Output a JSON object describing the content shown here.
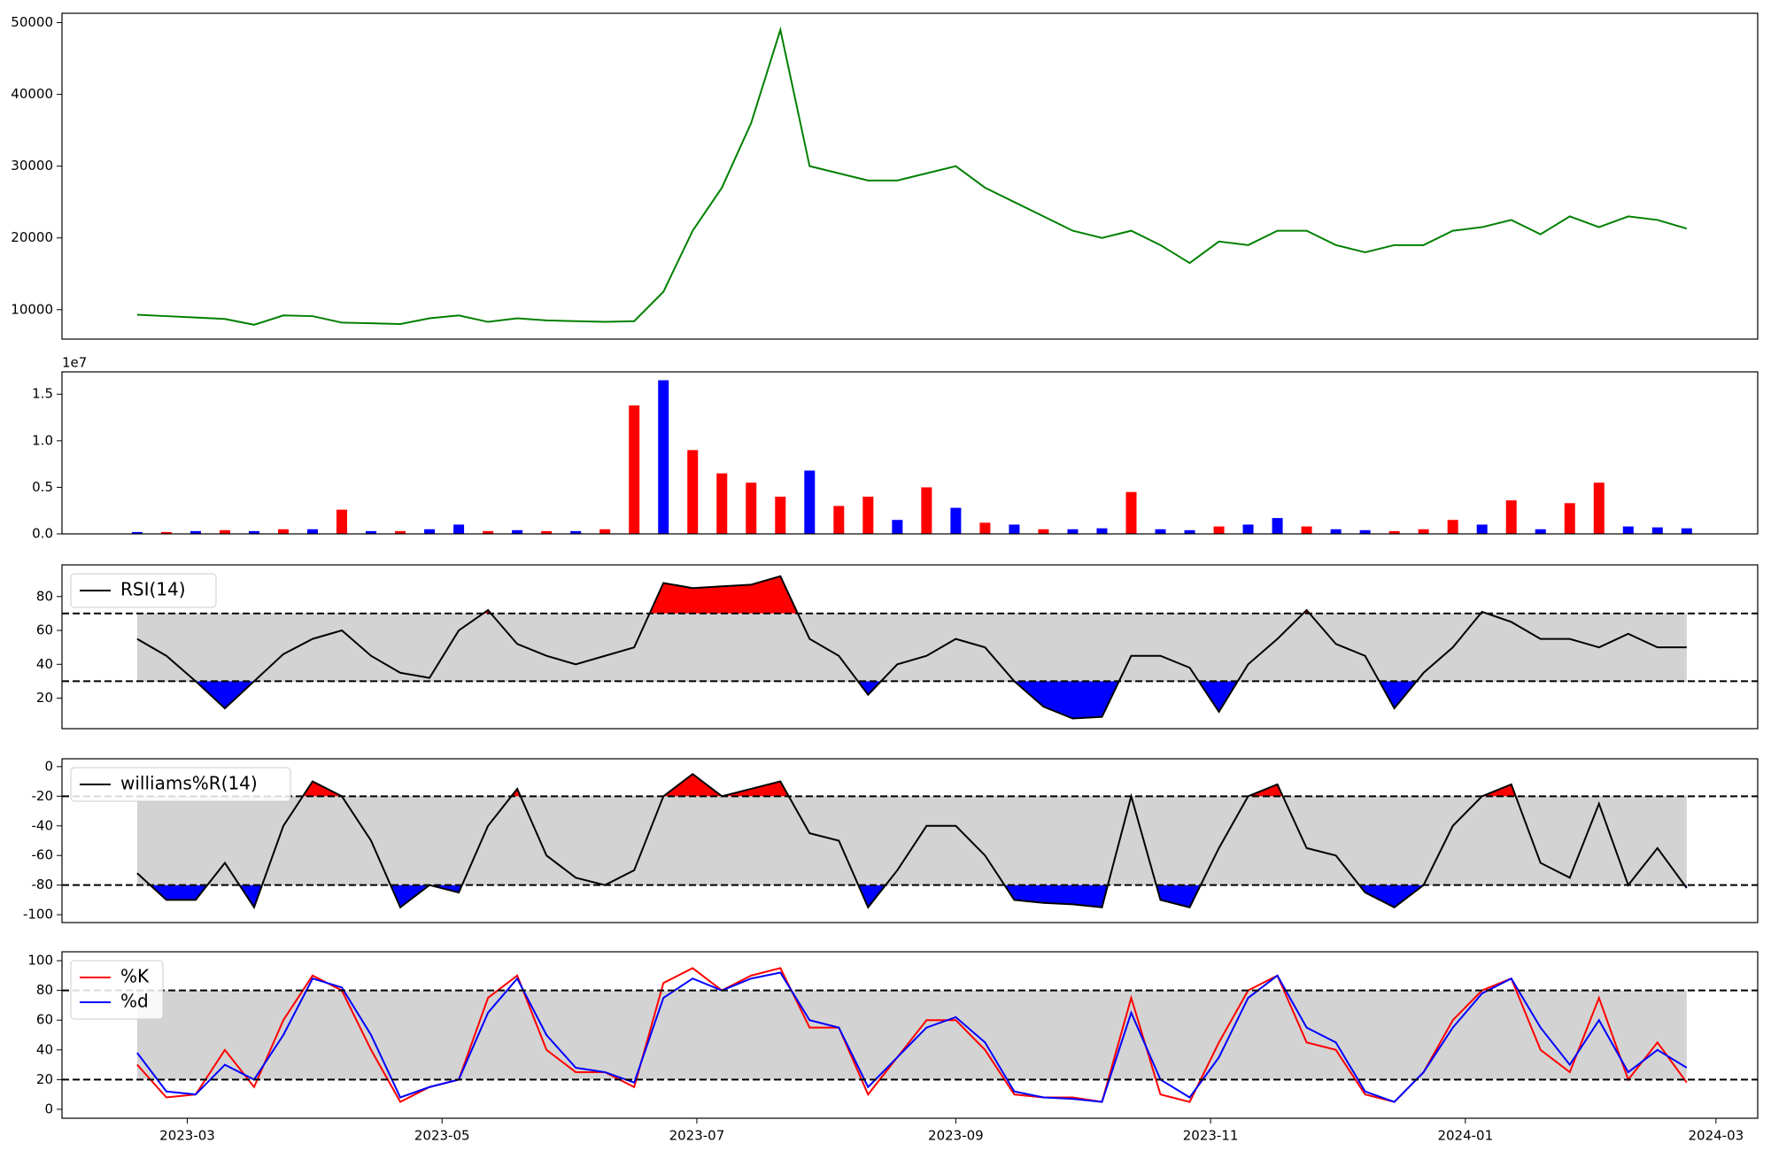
{
  "chart_data": [
    {
      "type": "line",
      "x": [
        "2023-02-17",
        "2023-02-24",
        "2023-03-03",
        "2023-03-10",
        "2023-03-17",
        "2023-03-24",
        "2023-03-31",
        "2023-04-07",
        "2023-04-14",
        "2023-04-21",
        "2023-04-28",
        "2023-05-05",
        "2023-05-12",
        "2023-05-19",
        "2023-05-26",
        "2023-06-02",
        "2023-06-09",
        "2023-06-16",
        "2023-06-23",
        "2023-06-30",
        "2023-07-07",
        "2023-07-14",
        "2023-07-21",
        "2023-07-28",
        "2023-08-04",
        "2023-08-11",
        "2023-08-18",
        "2023-08-25",
        "2023-09-01",
        "2023-09-08",
        "2023-09-15",
        "2023-09-22",
        "2023-09-29",
        "2023-10-06",
        "2023-10-13",
        "2023-10-20",
        "2023-10-27",
        "2023-11-03",
        "2023-11-10",
        "2023-11-17",
        "2023-11-24",
        "2023-12-01",
        "2023-12-08",
        "2023-12-15",
        "2023-12-22",
        "2023-12-29",
        "2024-01-05",
        "2024-01-12",
        "2024-01-19",
        "2024-01-26",
        "2024-02-02",
        "2024-02-09",
        "2024-02-16",
        "2024-02-23"
      ],
      "xlim": [
        "2023-01-30",
        "2024-03-11"
      ],
      "series": [
        {
          "color": "green",
          "values": [
            9300,
            9100,
            8900,
            8700,
            7900,
            9200,
            9100,
            8200,
            8100,
            8000,
            8800,
            9200,
            8300,
            8800,
            8500,
            8400,
            8300,
            8400,
            12500,
            21000,
            27000,
            36000,
            49000,
            30000,
            29000,
            28000,
            28000,
            29000,
            30000,
            27000,
            25000,
            23000,
            21000,
            20000,
            21000,
            19000,
            16500,
            19500,
            19000,
            21000,
            21000,
            19000,
            18000,
            19000,
            19000,
            21000,
            21500,
            22500,
            20500,
            23000,
            21500,
            23000,
            22500,
            21300
          ]
        }
      ],
      "ylim": [
        5900,
        51300
      ],
      "yticks": [
        10000,
        20000,
        30000,
        40000,
        50000
      ]
    },
    {
      "type": "bar",
      "x": [
        "2023-02-17",
        "2023-02-24",
        "2023-03-03",
        "2023-03-10",
        "2023-03-17",
        "2023-03-24",
        "2023-03-31",
        "2023-04-07",
        "2023-04-14",
        "2023-04-21",
        "2023-04-28",
        "2023-05-05",
        "2023-05-12",
        "2023-05-19",
        "2023-05-26",
        "2023-06-02",
        "2023-06-09",
        "2023-06-16",
        "2023-06-23",
        "2023-06-30",
        "2023-07-07",
        "2023-07-14",
        "2023-07-21",
        "2023-07-28",
        "2023-08-04",
        "2023-08-11",
        "2023-08-18",
        "2023-08-25",
        "2023-09-01",
        "2023-09-08",
        "2023-09-15",
        "2023-09-22",
        "2023-09-29",
        "2023-10-06",
        "2023-10-13",
        "2023-10-20",
        "2023-10-27",
        "2023-11-03",
        "2023-11-10",
        "2023-11-17",
        "2023-11-24",
        "2023-12-01",
        "2023-12-08",
        "2023-12-15",
        "2023-12-22",
        "2023-12-29",
        "2024-01-05",
        "2024-01-12",
        "2024-01-19",
        "2024-01-26",
        "2024-02-02",
        "2024-02-09",
        "2024-02-16",
        "2024-02-23"
      ],
      "xlim": [
        "2023-01-30",
        "2024-03-11"
      ],
      "offset_label": "1e7",
      "values": [
        0.02,
        0.02,
        0.03,
        0.04,
        0.03,
        0.05,
        0.05,
        0.26,
        0.03,
        0.03,
        0.05,
        0.1,
        0.03,
        0.04,
        0.03,
        0.03,
        0.05,
        1.38,
        1.65,
        0.9,
        0.65,
        0.55,
        0.4,
        0.68,
        0.3,
        0.4,
        0.15,
        0.5,
        0.28,
        0.12,
        0.1,
        0.05,
        0.05,
        0.06,
        0.45,
        0.05,
        0.04,
        0.08,
        0.1,
        0.17,
        0.08,
        0.05,
        0.04,
        0.03,
        0.05,
        0.15,
        0.1,
        0.36,
        0.05,
        0.33,
        0.55,
        0.08,
        0.07,
        0.06
      ],
      "bar_colors": [
        "blue",
        "red",
        "blue",
        "red",
        "blue",
        "red",
        "blue",
        "red",
        "blue",
        "red",
        "blue",
        "blue",
        "red",
        "blue",
        "red",
        "blue",
        "red",
        "red",
        "blue",
        "red",
        "red",
        "red",
        "red",
        "blue",
        "red",
        "red",
        "blue",
        "red",
        "blue",
        "red",
        "blue",
        "red",
        "blue",
        "blue",
        "red",
        "blue",
        "blue",
        "red",
        "blue",
        "blue",
        "red",
        "blue",
        "blue",
        "red",
        "red",
        "red",
        "blue",
        "red",
        "blue",
        "red",
        "red",
        "blue",
        "blue",
        "blue"
      ],
      "ylim": [
        0,
        1.74
      ],
      "yticks": [
        {
          "value": 0,
          "label": "0.0"
        },
        0.5,
        {
          "value": 1,
          "label": "1.0"
        },
        1.5
      ]
    },
    {
      "type": "line",
      "x": [
        "2023-02-17",
        "2023-02-24",
        "2023-03-03",
        "2023-03-10",
        "2023-03-17",
        "2023-03-24",
        "2023-03-31",
        "2023-04-07",
        "2023-04-14",
        "2023-04-21",
        "2023-04-28",
        "2023-05-05",
        "2023-05-12",
        "2023-05-19",
        "2023-05-26",
        "2023-06-02",
        "2023-06-09",
        "2023-06-16",
        "2023-06-23",
        "2023-06-30",
        "2023-07-07",
        "2023-07-14",
        "2023-07-21",
        "2023-07-28",
        "2023-08-04",
        "2023-08-11",
        "2023-08-18",
        "2023-08-25",
        "2023-09-01",
        "2023-09-08",
        "2023-09-15",
        "2023-09-22",
        "2023-09-29",
        "2023-10-06",
        "2023-10-13",
        "2023-10-20",
        "2023-10-27",
        "2023-11-03",
        "2023-11-10",
        "2023-11-17",
        "2023-11-24",
        "2023-12-01",
        "2023-12-08",
        "2023-12-15",
        "2023-12-22",
        "2023-12-29",
        "2024-01-05",
        "2024-01-12",
        "2024-01-19",
        "2024-01-26",
        "2024-02-02",
        "2024-02-09",
        "2024-02-16",
        "2024-02-23"
      ],
      "xlim": [
        "2023-01-30",
        "2024-03-11"
      ],
      "series": [
        {
          "name": "RSI(14)",
          "color": "black",
          "values": [
            55,
            45,
            30,
            14,
            30,
            46,
            55,
            60,
            45,
            35,
            32,
            60,
            72,
            52,
            45,
            40,
            45,
            50,
            88,
            85,
            86,
            87,
            92,
            55,
            45,
            22,
            40,
            45,
            55,
            50,
            30,
            15,
            8,
            9,
            45,
            45,
            38,
            12,
            40,
            55,
            72,
            52,
            45,
            14,
            35,
            50,
            71,
            65,
            55,
            55,
            50,
            58,
            50,
            50
          ]
        }
      ],
      "band": [
        30,
        70
      ],
      "band_color": "#d3d3d3",
      "fill_above": "red",
      "fill_below": "blue",
      "legend": "upper left",
      "ylim": [
        2,
        98.7
      ],
      "yticks": [
        20,
        40,
        60,
        80
      ]
    },
    {
      "type": "line",
      "x": [
        "2023-02-17",
        "2023-02-24",
        "2023-03-03",
        "2023-03-10",
        "2023-03-17",
        "2023-03-24",
        "2023-03-31",
        "2023-04-07",
        "2023-04-14",
        "2023-04-21",
        "2023-04-28",
        "2023-05-05",
        "2023-05-12",
        "2023-05-19",
        "2023-05-26",
        "2023-06-02",
        "2023-06-09",
        "2023-06-16",
        "2023-06-23",
        "2023-06-30",
        "2023-07-07",
        "2023-07-14",
        "2023-07-21",
        "2023-07-28",
        "2023-08-04",
        "2023-08-11",
        "2023-08-18",
        "2023-08-25",
        "2023-09-01",
        "2023-09-08",
        "2023-09-15",
        "2023-09-22",
        "2023-09-29",
        "2023-10-06",
        "2023-10-13",
        "2023-10-20",
        "2023-10-27",
        "2023-11-03",
        "2023-11-10",
        "2023-11-17",
        "2023-11-24",
        "2023-12-01",
        "2023-12-08",
        "2023-12-15",
        "2023-12-22",
        "2023-12-29",
        "2024-01-05",
        "2024-01-12",
        "2024-01-19",
        "2024-01-26",
        "2024-02-02",
        "2024-02-09",
        "2024-02-16",
        "2024-02-23"
      ],
      "xlim": [
        "2023-01-30",
        "2024-03-11"
      ],
      "series": [
        {
          "name": "williams%R(14)",
          "color": "black",
          "values": [
            -72,
            -90,
            -90,
            -65,
            -95,
            -40,
            -10,
            -20,
            -50,
            -95,
            -80,
            -85,
            -40,
            -15,
            -60,
            -75,
            -80,
            -70,
            -20,
            -5,
            -20,
            -15,
            -10,
            -45,
            -50,
            -95,
            -70,
            -40,
            -40,
            -60,
            -90,
            -92,
            -93,
            -95,
            -20,
            -90,
            -95,
            -55,
            -20,
            -12,
            -55,
            -60,
            -85,
            -95,
            -80,
            -40,
            -20,
            -12,
            -65,
            -75,
            -25,
            -80,
            -55,
            -82
          ]
        }
      ],
      "band": [
        -80,
        -20
      ],
      "band_color": "#d3d3d3",
      "fill_above": "red",
      "fill_below": "blue",
      "legend": "upper left",
      "ylim": [
        -105.3,
        5.3
      ],
      "yticks": [
        -100,
        -80,
        -60,
        -40,
        -20,
        0
      ]
    },
    {
      "type": "line",
      "x": [
        "2023-02-17",
        "2023-02-24",
        "2023-03-03",
        "2023-03-10",
        "2023-03-17",
        "2023-03-24",
        "2023-03-31",
        "2023-04-07",
        "2023-04-14",
        "2023-04-21",
        "2023-04-28",
        "2023-05-05",
        "2023-05-12",
        "2023-05-19",
        "2023-05-26",
        "2023-06-02",
        "2023-06-09",
        "2023-06-16",
        "2023-06-23",
        "2023-06-30",
        "2023-07-07",
        "2023-07-14",
        "2023-07-21",
        "2023-07-28",
        "2023-08-04",
        "2023-08-11",
        "2023-08-18",
        "2023-08-25",
        "2023-09-01",
        "2023-09-08",
        "2023-09-15",
        "2023-09-22",
        "2023-09-29",
        "2023-10-06",
        "2023-10-13",
        "2023-10-20",
        "2023-10-27",
        "2023-11-03",
        "2023-11-10",
        "2023-11-17",
        "2023-11-24",
        "2023-12-01",
        "2023-12-08",
        "2023-12-15",
        "2023-12-22",
        "2023-12-29",
        "2024-01-05",
        "2024-01-12",
        "2024-01-19",
        "2024-01-26",
        "2024-02-02",
        "2024-02-09",
        "2024-02-16",
        "2024-02-23"
      ],
      "xlim": [
        "2023-01-30",
        "2024-03-11"
      ],
      "series": [
        {
          "name": "%K",
          "color": "red",
          "values": [
            30,
            8,
            10,
            40,
            15,
            60,
            90,
            80,
            40,
            5,
            15,
            20,
            75,
            90,
            40,
            25,
            25,
            15,
            85,
            95,
            80,
            90,
            95,
            55,
            55,
            10,
            35,
            60,
            60,
            40,
            10,
            8,
            8,
            5,
            75,
            10,
            5,
            45,
            80,
            90,
            45,
            40,
            10,
            5,
            25,
            60,
            80,
            88,
            40,
            25,
            75,
            20,
            45,
            18
          ]
        },
        {
          "name": "%d",
          "color": "blue",
          "values": [
            38,
            12,
            10,
            30,
            20,
            50,
            88,
            82,
            50,
            8,
            15,
            20,
            65,
            88,
            50,
            28,
            25,
            18,
            75,
            88,
            80,
            88,
            92,
            60,
            55,
            15,
            35,
            55,
            62,
            45,
            12,
            8,
            7,
            5,
            65,
            20,
            8,
            35,
            75,
            90,
            55,
            45,
            12,
            5,
            25,
            55,
            78,
            88,
            55,
            30,
            60,
            25,
            40,
            28
          ]
        }
      ],
      "band": [
        20,
        80
      ],
      "band_color": "#d3d3d3",
      "legend": "upper left",
      "ylim": [
        -6,
        106
      ],
      "yticks": [
        0,
        20,
        40,
        60,
        80,
        100
      ],
      "xticks": [
        {
          "value": "2023-03-01",
          "label": "2023-03"
        },
        {
          "value": "2023-05-01",
          "label": "2023-05"
        },
        {
          "value": "2023-07-01",
          "label": "2023-07"
        },
        {
          "value": "2023-09-01",
          "label": "2023-09"
        },
        {
          "value": "2023-11-01",
          "label": "2023-11"
        },
        {
          "value": "2024-01-01",
          "label": "2024-01"
        },
        {
          "value": "2024-03-01",
          "label": "2024-03"
        }
      ]
    }
  ]
}
